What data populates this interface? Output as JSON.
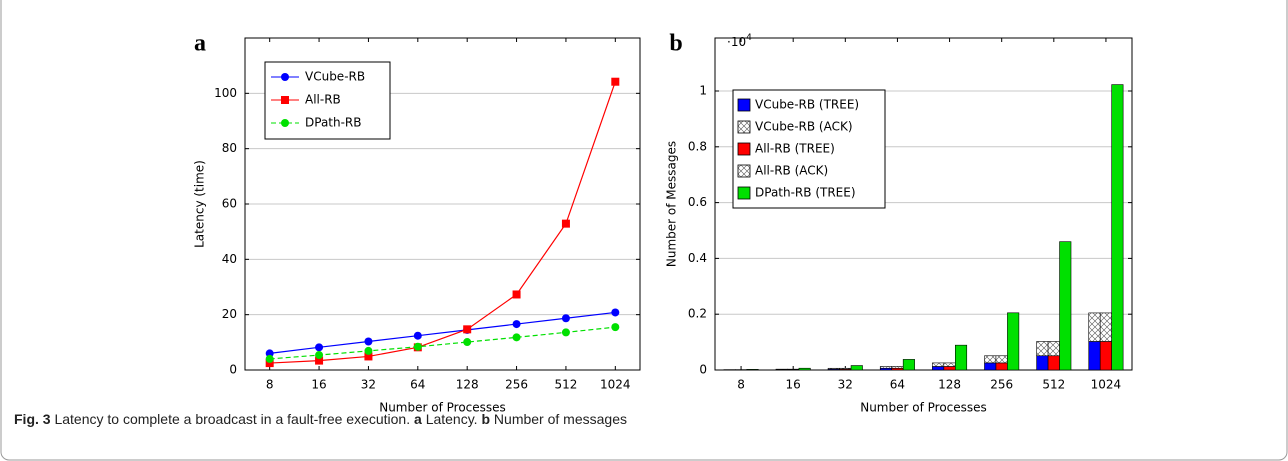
{
  "charts": [
    {
      "chart_data": {
        "type": "line",
        "panel_label": "a",
        "x_label": "Number of Processes",
        "y_label": "Latency (time)",
        "categories": [
          "8",
          "16",
          "32",
          "64",
          "128",
          "256",
          "512",
          "1024"
        ],
        "ylim": [
          0,
          120
        ],
        "yticks": [
          0,
          20,
          40,
          60,
          80,
          100
        ],
        "grid": true,
        "legend": "top-left",
        "series": [
          {
            "name": "VCube-RB",
            "color": "#0000ff",
            "marker": "circle",
            "dashed": false,
            "values": [
              6,
              8.2,
              10.3,
              12.4,
              14.5,
              16.6,
              18.7,
              20.8
            ]
          },
          {
            "name": "All-RB",
            "color": "#ff0000",
            "marker": "square",
            "dashed": false,
            "values": [
              2.5,
              3.4,
              4.9,
              8.2,
              14.7,
              27.3,
              52.9,
              104.2
            ]
          },
          {
            "name": "DPath-RB",
            "color": "#00e000",
            "marker": "circle",
            "dashed": true,
            "values": [
              4,
              5.4,
              6.9,
              8.4,
              10.1,
              11.8,
              13.6,
              15.5
            ]
          }
        ]
      }
    },
    {
      "chart_data": {
        "type": "bar",
        "panel_label": "b",
        "x_label": "Number of Processes",
        "y_label": "Number of Messages",
        "y_multiplier": {
          "base": "·10",
          "exponent": "4"
        },
        "categories": [
          "8",
          "16",
          "32",
          "64",
          "128",
          "256",
          "512",
          "1024"
        ],
        "ylim": [
          0,
          1.19
        ],
        "yticks": [
          0,
          0.2,
          0.4,
          0.6,
          0.8,
          1
        ],
        "grid": true,
        "legend": "top-left",
        "series": [
          {
            "name": "VCube-RB (TREE)",
            "color": "#0000ff",
            "pattern": "none",
            "values": [
              0.0007,
              0.0015,
              0.0031,
              0.0063,
              0.0127,
              0.0255,
              0.0511,
              0.1023
            ]
          },
          {
            "name": "VCube-RB (ACK)",
            "color": "#ffffff",
            "pattern": "cross",
            "values": [
              0.0007,
              0.0015,
              0.0031,
              0.0063,
              0.0127,
              0.0255,
              0.0511,
              0.1023
            ]
          },
          {
            "name": "All-RB (TREE)",
            "color": "#ff0000",
            "pattern": "none",
            "values": [
              0.0007,
              0.0015,
              0.0031,
              0.0063,
              0.0127,
              0.0255,
              0.0511,
              0.1023
            ]
          },
          {
            "name": "All-RB (ACK)",
            "color": "#ffffff",
            "pattern": "cross",
            "values": [
              0.0007,
              0.0015,
              0.0031,
              0.0063,
              0.0127,
              0.0255,
              0.0511,
              0.1023
            ]
          },
          {
            "name": "DPath-RB (TREE)",
            "color": "#00e000",
            "pattern": "none",
            "values": [
              0.0024,
              0.0064,
              0.016,
              0.038,
              0.089,
              0.205,
              0.46,
              1.023
            ]
          }
        ]
      }
    }
  ],
  "caption": {
    "label": "Fig. 3",
    "text": "Latency to complete a broadcast in a fault-free execution.",
    "parts": [
      {
        "label": "a",
        "text": "Latency."
      },
      {
        "label": "b",
        "text": "Number of messages"
      }
    ]
  }
}
